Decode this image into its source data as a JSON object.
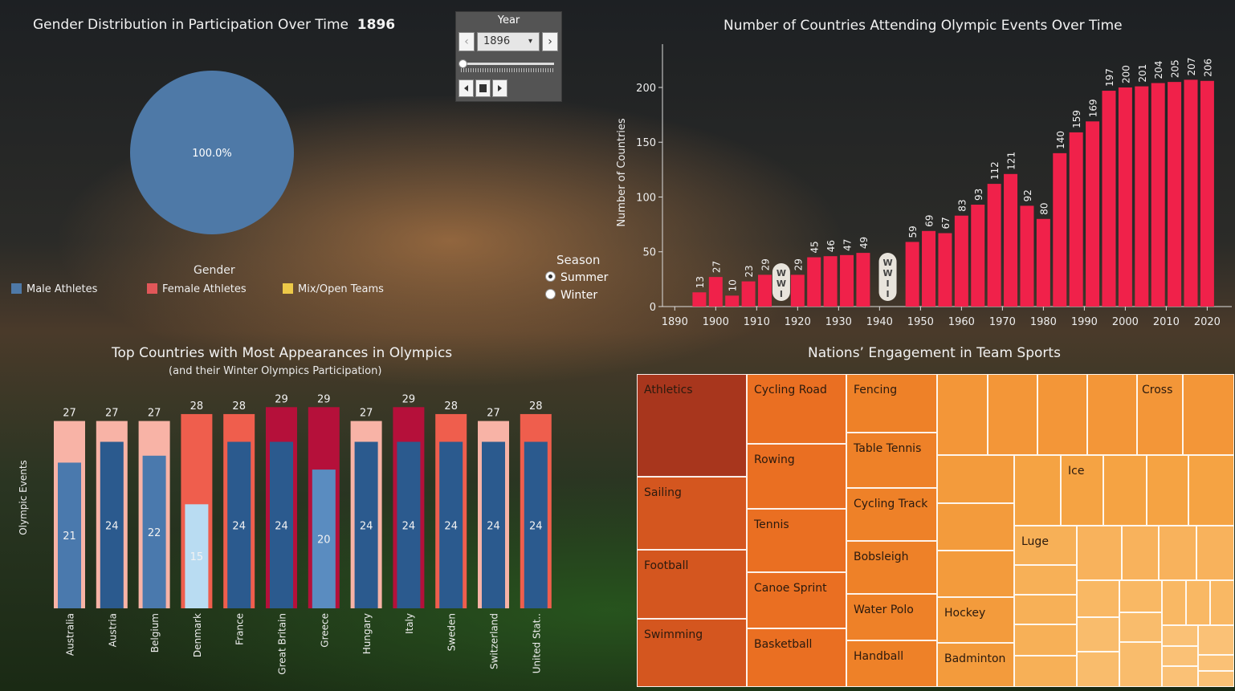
{
  "pie": {
    "title": "Gender Distribution in Participation Over Time",
    "year": "1896",
    "slice_label": "100.0%",
    "legend_title": "Gender",
    "legend": [
      {
        "label": "Male Athletes",
        "color": "#4e79a7"
      },
      {
        "label": "Female Athletes",
        "color": "#e15759"
      },
      {
        "label": "Mix/Open Teams",
        "color": "#edc948"
      }
    ]
  },
  "year_control": {
    "title": "Year",
    "value": "1896",
    "prev": "‹",
    "next": "›",
    "dropdown_icon": "▾"
  },
  "season": {
    "title": "Season",
    "options": [
      "Summer",
      "Winter"
    ],
    "selected": "Summer"
  },
  "countries_chart": {
    "title": "Number of Countries Attending Olympic Events Over Time",
    "ylabel": "Number of Countries",
    "ylim": [
      0,
      230
    ],
    "yticks": [
      0,
      50,
      100,
      150,
      200
    ],
    "xticks": [
      1890,
      1900,
      1910,
      1920,
      1930,
      1940,
      1950,
      1960,
      1970,
      1980,
      1990,
      2000,
      2010,
      2020
    ],
    "xlim": [
      1887,
      2026
    ],
    "years": [
      1896,
      1900,
      1904,
      1908,
      1912,
      1920,
      1924,
      1928,
      1932,
      1936,
      1948,
      1952,
      1956,
      1960,
      1964,
      1968,
      1972,
      1976,
      1980,
      1984,
      1988,
      1992,
      1996,
      2000,
      2004,
      2008,
      2012,
      2016,
      2020
    ],
    "values": [
      13,
      27,
      10,
      23,
      29,
      29,
      45,
      46,
      47,
      49,
      59,
      69,
      67,
      83,
      93,
      112,
      121,
      92,
      80,
      140,
      159,
      169,
      197,
      200,
      201,
      204,
      205,
      207,
      206
    ],
    "bar_color": "#f0214a",
    "annotations": [
      {
        "year": 1916,
        "letters": [
          "W",
          "W",
          "I"
        ]
      },
      {
        "year": 1942,
        "letters": [
          "W",
          "W",
          "I",
          "I"
        ]
      }
    ]
  },
  "chart_data": {
    "type": "bar",
    "title": "Top Countries with Most Appearances in Olympics",
    "subtitle": "(and their Winter Olympics Participation)",
    "ylabel": "Olympic Events",
    "categories": [
      "Australia",
      "Austria",
      "Belgium",
      "Denmark",
      "France",
      "Great Britain",
      "Greece",
      "Hungary",
      "Italy",
      "Sweden",
      "Switzerland",
      "United Stat.."
    ],
    "series": [
      {
        "values": [
          27,
          27,
          27,
          28,
          28,
          29,
          29,
          27,
          29,
          28,
          27,
          28
        ]
      },
      {
        "values": [
          21,
          24,
          22,
          15,
          24,
          24,
          20,
          24,
          24,
          24,
          24,
          24
        ]
      }
    ],
    "ylim": [
      0,
      31
    ],
    "outer_colors": [
      "#f8b3a6",
      "#f8b3a6",
      "#f8b3a6",
      "#ef5e4d",
      "#ef5e4d",
      "#b5103a",
      "#b5103a",
      "#f8b3a6",
      "#b5103a",
      "#ef5e4d",
      "#f8b3a6",
      "#ef5e4d"
    ],
    "inner_colors": [
      "#4a79ad",
      "#2b5a8e",
      "#4a79ad",
      "#b9dcf2",
      "#2b5a8e",
      "#2b5a8e",
      "#5a8cc0",
      "#2b5a8e",
      "#2b5a8e",
      "#2b5a8e",
      "#2b5a8e",
      "#2b5a8e"
    ]
  },
  "treemap": {
    "title": "Nations’ Engagement in Team Sports",
    "labels": [
      "Athletics",
      "Sailing",
      "Football",
      "Swimming",
      "Cycling Road",
      "Rowing",
      "Tennis",
      "Canoe Sprint",
      "Basketball",
      "Fencing",
      "Table Tennis",
      "Cycling Track",
      "Bobsleigh",
      "Water Polo",
      "Handball",
      "Hockey",
      "Badminton",
      "Cross",
      "Ice",
      "Luge"
    ]
  }
}
